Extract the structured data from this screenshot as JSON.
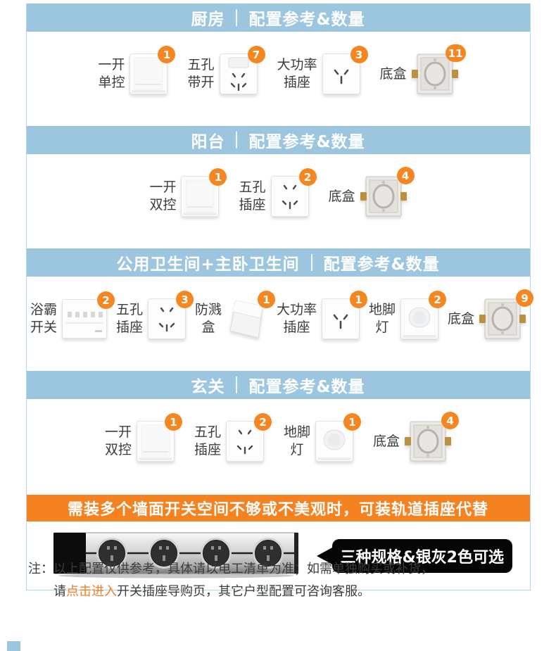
{
  "theme": {
    "header_bg": "#9cc6e0",
    "side_border": "#b3d7ea",
    "badge_bg": "#f6861f",
    "banner_bg": "#f58220",
    "link_color": "#f57c20",
    "bubble_bg": "#060606",
    "text_color": "#3c3c3c"
  },
  "sections": [
    {
      "room": "厨房",
      "suffix": "配置参考&数量",
      "items": [
        {
          "label_lines": [
            "一开",
            "单控"
          ],
          "icon": "single-switch",
          "count": "1"
        },
        {
          "label_lines": [
            "五孔",
            "带开"
          ],
          "icon": "socket5-switch",
          "count": "7"
        },
        {
          "label_lines": [
            "大功率",
            "插座"
          ],
          "icon": "socket3",
          "count": "3"
        },
        {
          "label_lines": [
            "底盒"
          ],
          "icon": "wall-box",
          "count": "11"
        }
      ]
    },
    {
      "room": "阳台",
      "suffix": "配置参考&数量",
      "items": [
        {
          "label_lines": [
            "一开",
            "双控"
          ],
          "icon": "single-switch",
          "count": "1"
        },
        {
          "label_lines": [
            "五孔",
            "插座"
          ],
          "icon": "socket5",
          "count": "2"
        },
        {
          "label_lines": [
            "底盒"
          ],
          "icon": "wall-box",
          "count": "4"
        }
      ]
    },
    {
      "room": "公用卫生间+主卧卫生间",
      "suffix": "配置参考&数量",
      "items": [
        {
          "label_lines": [
            "浴霸",
            "开关"
          ],
          "icon": "bath-switch",
          "count": "2"
        },
        {
          "label_lines": [
            "五孔",
            "插座"
          ],
          "icon": "socket5",
          "count": "3"
        },
        {
          "label_lines": [
            "防溅",
            "盒"
          ],
          "icon": "splash-cover",
          "count": "1"
        },
        {
          "label_lines": [
            "大功率",
            "插座"
          ],
          "icon": "socket3",
          "count": "1"
        },
        {
          "label_lines": [
            "地脚",
            "灯"
          ],
          "icon": "foot-light",
          "count": "2"
        },
        {
          "label_lines": [
            "底盒"
          ],
          "icon": "wall-box",
          "count": "9"
        }
      ]
    },
    {
      "room": "玄关",
      "suffix": "配置参考&数量",
      "items": [
        {
          "label_lines": [
            "一开",
            "双控"
          ],
          "icon": "single-switch",
          "count": "1"
        },
        {
          "label_lines": [
            "五孔",
            "插座"
          ],
          "icon": "socket5",
          "count": "2"
        },
        {
          "label_lines": [
            "地脚",
            "灯"
          ],
          "icon": "foot-light",
          "count": "1"
        },
        {
          "label_lines": [
            "底盒"
          ],
          "icon": "wall-box",
          "count": "4"
        }
      ]
    }
  ],
  "banner": {
    "text": "需装多个墙面开关空间不够或不美观时，可装轨道插座代替"
  },
  "track": {
    "bubble_text": "三种规格&银灰2色可选"
  },
  "note": {
    "prefix": "注：",
    "line1": "以上配置仅供参考，具体请以电工清单为准；如需单独购买或补货，",
    "line2_pre": "请",
    "link_text": "点击进入",
    "line2_post": "开关插座导购页，其它户型配置可咨询客服。"
  }
}
